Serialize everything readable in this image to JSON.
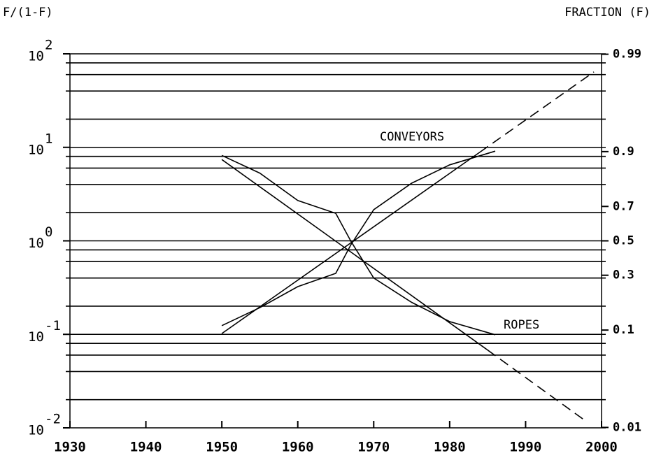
{
  "chart_data": {
    "type": "line",
    "ylabel": "F/(1-F)",
    "y2label": "FRACTION (F)",
    "xlim": [
      1930,
      2000
    ],
    "xticks": [
      1930,
      1940,
      1950,
      1960,
      1970,
      1980,
      1990,
      2000
    ],
    "ylim": [
      0.01,
      100
    ],
    "yscale": "log",
    "yticks": [
      {
        "value": 0.01,
        "label": "10",
        "exponent": "-2"
      },
      {
        "value": 0.1,
        "label": "10",
        "exponent": "-1"
      },
      {
        "value": 1,
        "label": "10",
        "exponent": "0"
      },
      {
        "value": 10,
        "label": "10",
        "exponent": "1"
      },
      {
        "value": 100,
        "label": "10",
        "exponent": "2"
      }
    ],
    "grid_lines": [
      0.01,
      0.02,
      0.04,
      0.06,
      0.08,
      0.1,
      0.2,
      0.4,
      0.6,
      0.8,
      1,
      2,
      4,
      6,
      8,
      10,
      20,
      40,
      60,
      80,
      100
    ],
    "y2lim": [
      0.0099,
      0.9901
    ],
    "y2scale": "logit",
    "y2ticks": [
      0.01,
      0.1,
      0.3,
      0.5,
      0.7,
      0.9,
      0.99
    ],
    "color": "#000000",
    "series": [
      {
        "name": "CONVEYORS",
        "x": [
          1950,
          1955,
          1960,
          1965,
          1967,
          1970,
          1975,
          1980,
          1986
        ],
        "values": [
          0.124,
          0.193,
          0.324,
          0.449,
          0.91,
          2.15,
          4.14,
          6.5,
          9.1
        ],
        "fit": {
          "x": [
            1950,
            1984
          ],
          "values": [
            0.102,
            8.9
          ]
        },
        "projection": {
          "x": [
            1984,
            1999
          ],
          "values": [
            8.9,
            64
          ]
        }
      },
      {
        "name": "ROPES",
        "x": [
          1950,
          1955,
          1960,
          1965,
          1967,
          1970,
          1975,
          1980,
          1986
        ],
        "values": [
          8.2,
          5.3,
          2.7,
          1.97,
          0.99,
          0.4,
          0.22,
          0.137,
          0.099
        ],
        "fit": {
          "x": [
            1950,
            1985
          ],
          "values": [
            7.4,
            0.068
          ]
        },
        "projection": {
          "x": [
            1985,
            1998
          ],
          "values": [
            0.068,
            0.0117
          ]
        }
      }
    ]
  }
}
